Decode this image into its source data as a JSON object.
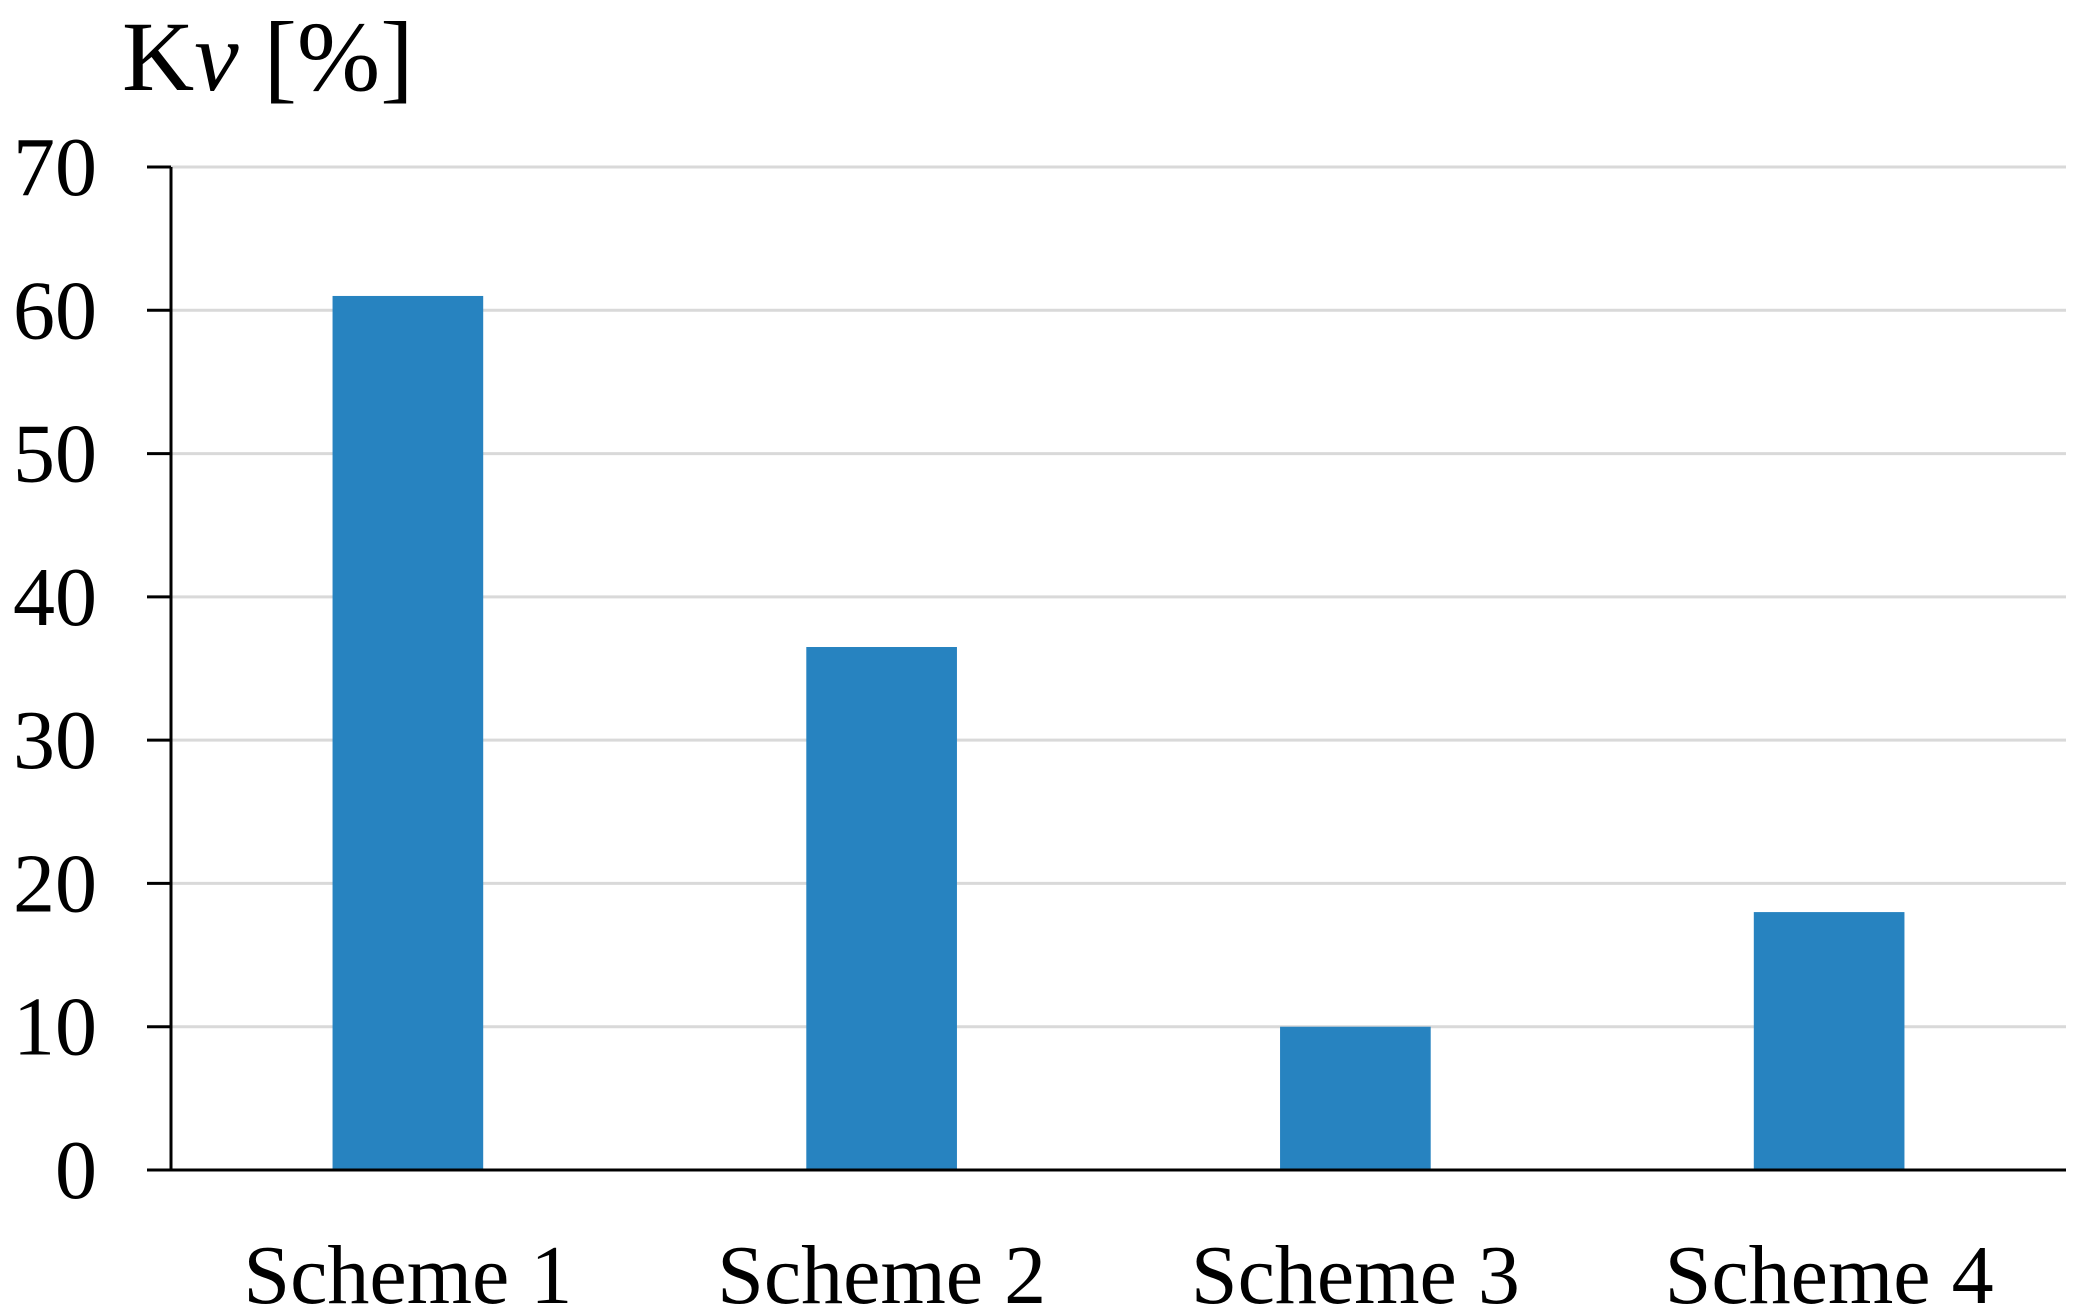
{
  "chart_data": {
    "type": "bar",
    "ylabel": {
      "prefix": "K",
      "italic_symbol": "v",
      "suffix": " [%]"
    },
    "xlabel": "",
    "categories": [
      "Scheme 1",
      "Scheme 2",
      "Scheme 3",
      "Scheme 4"
    ],
    "values": [
      61,
      36.5,
      10,
      18
    ],
    "ylim": [
      0,
      70
    ],
    "yticks": [
      "0",
      "10",
      "20",
      "30",
      "40",
      "50",
      "60",
      "70"
    ],
    "grid": true,
    "legend": "none",
    "colors": {
      "bar": "#2783C0",
      "grid": "#D9D9D9",
      "axis": "#000000"
    }
  }
}
